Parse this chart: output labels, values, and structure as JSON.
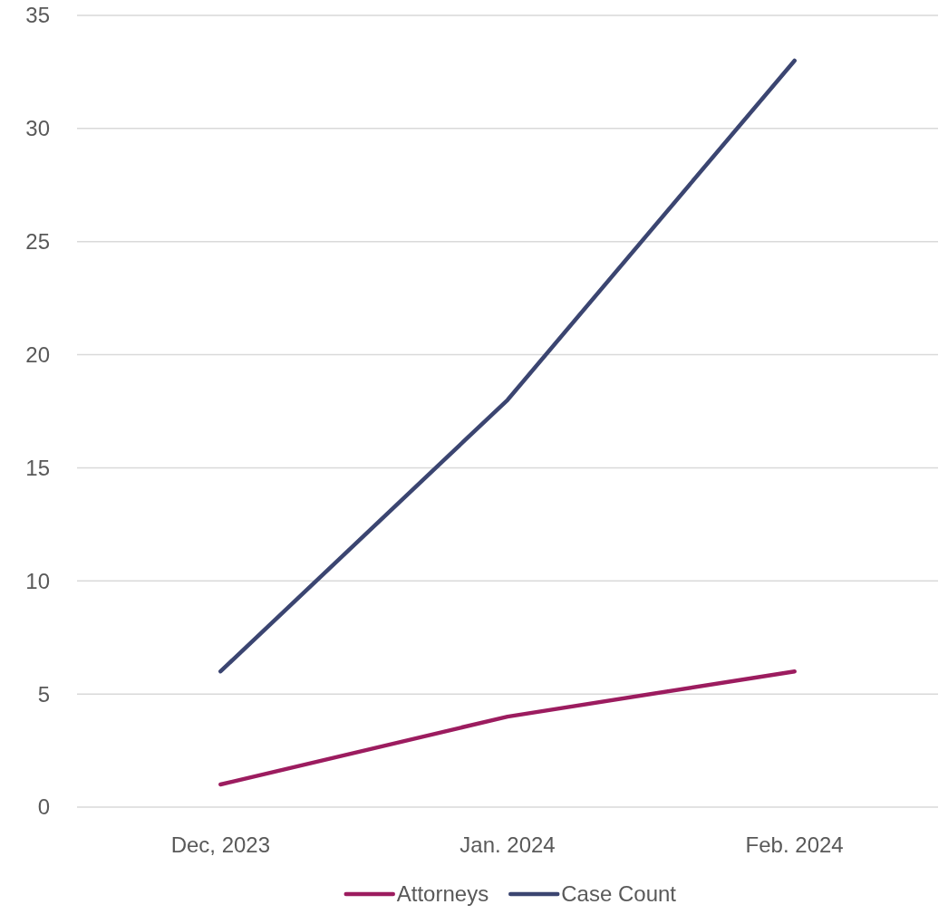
{
  "chart_data": {
    "type": "line",
    "categories": [
      "Dec, 2023",
      "Jan. 2024",
      "Feb. 2024"
    ],
    "series": [
      {
        "name": "Attorneys",
        "color": "#9c1c5f",
        "values": [
          1,
          4,
          6
        ]
      },
      {
        "name": "Case Count",
        "color": "#3b4571",
        "values": [
          6,
          18,
          33
        ]
      }
    ],
    "ylim": [
      0,
      35
    ],
    "yticks": [
      0,
      5,
      10,
      15,
      20,
      25,
      30,
      35
    ],
    "grid": "y",
    "legend": "bottom",
    "marker": "none",
    "line_style": "solid"
  }
}
